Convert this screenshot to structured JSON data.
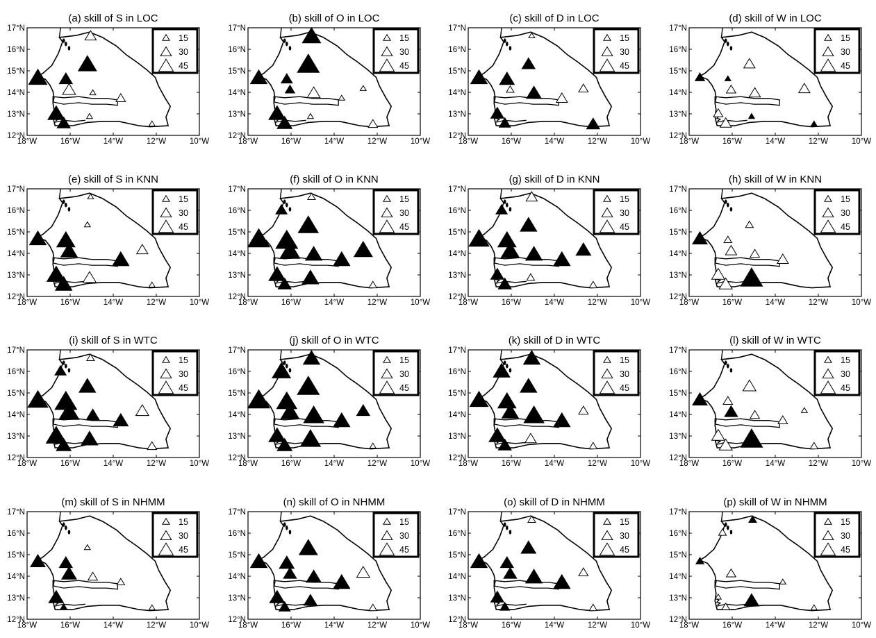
{
  "figure": {
    "axes": {
      "lon_min": -18,
      "lon_max": -10,
      "lat_min": 12,
      "lat_max": 17,
      "lon_ticks": [
        {
          "value": -18,
          "label": "18°W"
        },
        {
          "value": -16,
          "label": "16°W"
        },
        {
          "value": -14,
          "label": "14°W"
        },
        {
          "value": -12,
          "label": "12°W"
        },
        {
          "value": -10,
          "label": "10°W"
        }
      ],
      "lat_ticks": [
        {
          "value": 12,
          "label": "12°N"
        },
        {
          "value": 13,
          "label": "13°N"
        },
        {
          "value": 14,
          "label": "14°N"
        },
        {
          "value": 15,
          "label": "15°N"
        },
        {
          "value": 16,
          "label": "16°N"
        },
        {
          "value": 17,
          "label": "17°N"
        }
      ]
    },
    "legend": {
      "placement": "top-right",
      "entries": [
        {
          "label": "15",
          "size": 15
        },
        {
          "label": "30",
          "size": 30
        },
        {
          "label": "45",
          "size": 45
        }
      ]
    },
    "stations": [
      {
        "lon": -17.5,
        "lat": 14.72
      },
      {
        "lon": -16.45,
        "lat": 16.05
      },
      {
        "lon": -15.05,
        "lat": 16.65
      },
      {
        "lon": -16.2,
        "lat": 14.65
      },
      {
        "lon": -16.05,
        "lat": 14.15
      },
      {
        "lon": -15.2,
        "lat": 15.35
      },
      {
        "lon": -14.95,
        "lat": 14.0
      },
      {
        "lon": -13.65,
        "lat": 13.75
      },
      {
        "lon": -12.65,
        "lat": 14.2
      },
      {
        "lon": -16.65,
        "lat": 13.05
      },
      {
        "lon": -16.3,
        "lat": 12.6
      },
      {
        "lon": -15.1,
        "lat": 12.9
      },
      {
        "lon": -12.2,
        "lat": 12.55
      }
    ],
    "panels": [
      {
        "title": "(a) skill of S in LOC",
        "skills": [
          [
            45,
            1
          ],
          [
            0,
            0
          ],
          [
            25,
            0
          ],
          [
            30,
            1
          ],
          [
            30,
            0
          ],
          [
            45,
            1
          ],
          [
            10,
            0
          ],
          [
            20,
            0
          ],
          [
            0,
            0
          ],
          [
            40,
            1
          ],
          [
            30,
            1
          ],
          [
            10,
            0
          ],
          [
            10,
            0
          ]
        ]
      },
      {
        "title": "(b) skill of O in LOC",
        "skills": [
          [
            40,
            1
          ],
          [
            0,
            0
          ],
          [
            45,
            1
          ],
          [
            25,
            1
          ],
          [
            20,
            1
          ],
          [
            55,
            1
          ],
          [
            30,
            0
          ],
          [
            10,
            0
          ],
          [
            10,
            0
          ],
          [
            40,
            1
          ],
          [
            35,
            1
          ],
          [
            10,
            0
          ],
          [
            20,
            0
          ]
        ]
      },
      {
        "title": "(c) skill of D in LOC",
        "skills": [
          [
            40,
            1
          ],
          [
            0,
            0
          ],
          [
            10,
            0
          ],
          [
            35,
            1
          ],
          [
            15,
            0
          ],
          [
            30,
            1
          ],
          [
            35,
            1
          ],
          [
            25,
            0
          ],
          [
            20,
            0
          ],
          [
            30,
            1
          ],
          [
            25,
            1
          ],
          [
            0,
            0
          ],
          [
            30,
            1
          ]
        ]
      },
      {
        "title": "(d) skill of W in LOC",
        "skills": [
          [
            20,
            1
          ],
          [
            0,
            0
          ],
          [
            0,
            0
          ],
          [
            10,
            1
          ],
          [
            20,
            0
          ],
          [
            25,
            0
          ],
          [
            25,
            0
          ],
          [
            0,
            0
          ],
          [
            25,
            0
          ],
          [
            20,
            0
          ],
          [
            25,
            0
          ],
          [
            10,
            1
          ],
          [
            10,
            1
          ]
        ]
      },
      {
        "title": "(e) skill of S in KNN",
        "skills": [
          [
            40,
            1
          ],
          [
            0,
            0
          ],
          [
            10,
            0
          ],
          [
            45,
            1
          ],
          [
            40,
            1
          ],
          [
            10,
            0
          ],
          [
            0,
            0
          ],
          [
            40,
            1
          ],
          [
            25,
            0
          ],
          [
            45,
            1
          ],
          [
            40,
            1
          ],
          [
            30,
            0
          ],
          [
            10,
            0
          ]
        ]
      },
      {
        "title": "(f) skill of O in KNN",
        "skills": [
          [
            55,
            1
          ],
          [
            25,
            1
          ],
          [
            15,
            0
          ],
          [
            55,
            1
          ],
          [
            50,
            1
          ],
          [
            50,
            1
          ],
          [
            40,
            1
          ],
          [
            40,
            1
          ],
          [
            45,
            1
          ],
          [
            40,
            1
          ],
          [
            30,
            1
          ],
          [
            40,
            1
          ],
          [
            15,
            0
          ]
        ]
      },
      {
        "title": "(g) skill of D in KNN",
        "skills": [
          [
            50,
            1
          ],
          [
            25,
            1
          ],
          [
            25,
            0
          ],
          [
            45,
            1
          ],
          [
            45,
            1
          ],
          [
            40,
            1
          ],
          [
            40,
            1
          ],
          [
            40,
            1
          ],
          [
            35,
            1
          ],
          [
            30,
            1
          ],
          [
            30,
            1
          ],
          [
            15,
            0
          ],
          [
            15,
            0
          ]
        ]
      },
      {
        "title": "(h) skill of W in KNN",
        "skills": [
          [
            35,
            1
          ],
          [
            0,
            0
          ],
          [
            0,
            0
          ],
          [
            15,
            0
          ],
          [
            25,
            0
          ],
          [
            15,
            0
          ],
          [
            20,
            0
          ],
          [
            25,
            0
          ],
          [
            0,
            0
          ],
          [
            30,
            0
          ],
          [
            30,
            0
          ],
          [
            55,
            1
          ],
          [
            0,
            0
          ]
        ]
      },
      {
        "title": "(i) skill of S in WTC",
        "skills": [
          [
            50,
            1
          ],
          [
            25,
            1
          ],
          [
            15,
            0
          ],
          [
            55,
            1
          ],
          [
            50,
            1
          ],
          [
            40,
            1
          ],
          [
            30,
            1
          ],
          [
            35,
            1
          ],
          [
            30,
            0
          ],
          [
            50,
            1
          ],
          [
            35,
            1
          ],
          [
            40,
            1
          ],
          [
            20,
            0
          ]
        ]
      },
      {
        "title": "(j) skill of O in WTC",
        "skills": [
          [
            55,
            1
          ],
          [
            45,
            1
          ],
          [
            40,
            1
          ],
          [
            50,
            1
          ],
          [
            45,
            1
          ],
          [
            55,
            1
          ],
          [
            50,
            1
          ],
          [
            40,
            1
          ],
          [
            30,
            1
          ],
          [
            40,
            1
          ],
          [
            35,
            1
          ],
          [
            50,
            1
          ],
          [
            10,
            0
          ]
        ]
      },
      {
        "title": "(k) skill of D in WTC",
        "skills": [
          [
            45,
            1
          ],
          [
            40,
            1
          ],
          [
            40,
            1
          ],
          [
            45,
            1
          ],
          [
            40,
            1
          ],
          [
            40,
            1
          ],
          [
            50,
            1
          ],
          [
            40,
            1
          ],
          [
            20,
            0
          ],
          [
            40,
            1
          ],
          [
            30,
            1
          ],
          [
            25,
            0
          ],
          [
            15,
            0
          ]
        ]
      },
      {
        "title": "(l) skill of W in WTC",
        "skills": [
          [
            35,
            1
          ],
          [
            0,
            0
          ],
          [
            0,
            0
          ],
          [
            20,
            0
          ],
          [
            30,
            1
          ],
          [
            30,
            0
          ],
          [
            20,
            0
          ],
          [
            20,
            0
          ],
          [
            10,
            0
          ],
          [
            30,
            0
          ],
          [
            30,
            0
          ],
          [
            55,
            1
          ],
          [
            15,
            0
          ]
        ]
      },
      {
        "title": "(m) skill of S in NHMM",
        "skills": [
          [
            35,
            1
          ],
          [
            0,
            0
          ],
          [
            0,
            0
          ],
          [
            30,
            1
          ],
          [
            35,
            1
          ],
          [
            10,
            0
          ],
          [
            20,
            0
          ],
          [
            15,
            0
          ],
          [
            0,
            0
          ],
          [
            35,
            1
          ],
          [
            10,
            1
          ],
          [
            0,
            0
          ],
          [
            10,
            0
          ]
        ]
      },
      {
        "title": "(n) skill of O in NHMM",
        "skills": [
          [
            40,
            1
          ],
          [
            0,
            0
          ],
          [
            0,
            0
          ],
          [
            35,
            1
          ],
          [
            30,
            1
          ],
          [
            45,
            1
          ],
          [
            35,
            1
          ],
          [
            40,
            1
          ],
          [
            30,
            0
          ],
          [
            35,
            1
          ],
          [
            25,
            1
          ],
          [
            30,
            1
          ],
          [
            15,
            0
          ]
        ]
      },
      {
        "title": "(o) skill of D in NHMM",
        "skills": [
          [
            40,
            1
          ],
          [
            0,
            0
          ],
          [
            15,
            0
          ],
          [
            30,
            1
          ],
          [
            30,
            1
          ],
          [
            35,
            1
          ],
          [
            40,
            1
          ],
          [
            40,
            1
          ],
          [
            20,
            0
          ],
          [
            30,
            1
          ],
          [
            20,
            1
          ],
          [
            0,
            0
          ],
          [
            15,
            0
          ]
        ]
      },
      {
        "title": "(p) skill of W in NHMM",
        "skills": [
          [
            15,
            1
          ],
          [
            15,
            0
          ],
          [
            15,
            1
          ],
          [
            0,
            0
          ],
          [
            20,
            0
          ],
          [
            0,
            0
          ],
          [
            0,
            0
          ],
          [
            10,
            0
          ],
          [
            0,
            0
          ],
          [
            10,
            0
          ],
          [
            15,
            0
          ],
          [
            35,
            1
          ],
          [
            10,
            0
          ]
        ]
      }
    ]
  }
}
